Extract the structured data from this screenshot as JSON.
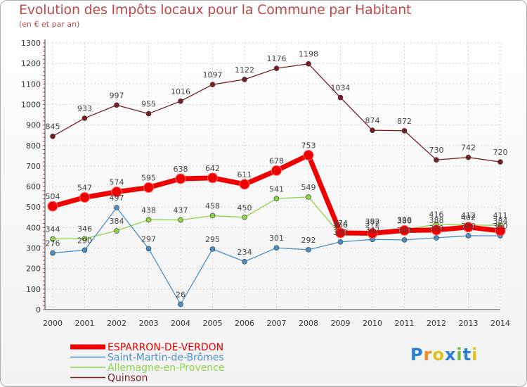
{
  "title": "Evolution des Impôts locaux pour la Commune par Habitant",
  "subtitle": "(en € et par an)",
  "logo_text": "Proxiti",
  "chart_data": {
    "type": "line",
    "title": "Evolution des Impôts locaux pour la Commune par Habitant",
    "subtitle": "(en € et par an)",
    "xlabel": "",
    "ylabel": "",
    "ylim": [
      0,
      1300
    ],
    "yticks": [
      "0",
      "100",
      "200",
      "300",
      "400",
      "500",
      "600",
      "700",
      "800",
      "900",
      "1000",
      "1100",
      "1200",
      "1300"
    ],
    "categories": [
      "2000",
      "2001",
      "2002",
      "2003",
      "2004",
      "2005",
      "2006",
      "2007",
      "2008",
      "2009",
      "2010",
      "2011",
      "2012",
      "2013",
      "2014"
    ],
    "legend_position": "bottom-left",
    "series": [
      {
        "name": "Quinson",
        "color": "#7a1e26",
        "values": [
          845,
          933,
          997,
          955,
          1016,
          1097,
          1122,
          1176,
          1198,
          1034,
          874,
          872,
          730,
          742,
          720
        ],
        "labels": [
          "845",
          "933",
          "997",
          "955",
          "1016",
          "1097",
          "1122",
          "1176",
          "1198",
          "1034",
          "874",
          "872",
          "730",
          "742",
          "720"
        ]
      },
      {
        "name": "Allemagne-en-Provence",
        "color": "#8ed44a",
        "values": [
          344,
          346,
          384,
          438,
          437,
          458,
          450,
          541,
          549,
          366,
          382,
          390,
          416,
          412,
          411
        ],
        "labels": [
          "344",
          "346",
          "384",
          "438",
          "437",
          "458",
          "450",
          "541",
          "549",
          "366",
          "382",
          "390",
          "416",
          "412",
          "411"
        ]
      },
      {
        "name": "Saint-Martin-de-Brômes",
        "color": "#4a90c8",
        "values": [
          276,
          290,
          497,
          297,
          26,
          295,
          234,
          301,
          292,
          330,
          342,
          340,
          350,
          360,
          360
        ],
        "labels": [
          "276",
          "290",
          "497",
          "297",
          "26",
          "295",
          "234",
          "301",
          "292",
          "330",
          "342",
          "340",
          "350",
          "360",
          "360"
        ]
      },
      {
        "name": "ESPARRON-DE-VERDON",
        "color": "#ee0000",
        "values": [
          504,
          547,
          574,
          595,
          638,
          642,
          611,
          678,
          753,
          374,
          372,
          386,
          388,
          402,
          384
        ],
        "labels": [
          "504",
          "547",
          "574",
          "595",
          "638",
          "642",
          "611",
          "678",
          "753",
          "374",
          "372",
          "386",
          "388",
          "402",
          "384"
        ]
      }
    ]
  }
}
